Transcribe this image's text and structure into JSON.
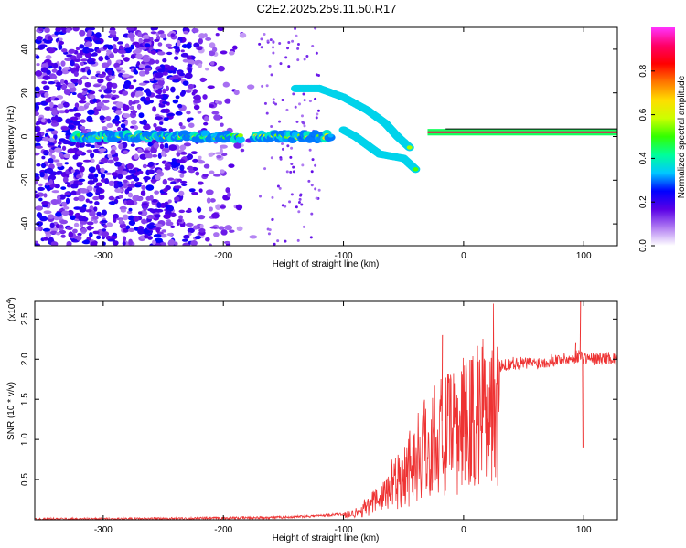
{
  "title": "C2E2.2025.259.11.50.R17",
  "chart_data": [
    {
      "type": "heatmap",
      "xlabel": "Height of straight line (km)",
      "ylabel": "Frequency (Hz)",
      "xlim": [
        -357,
        128
      ],
      "ylim": [
        -50,
        50
      ],
      "xticks": [
        -300,
        -200,
        -100,
        0,
        100
      ],
      "yticks": [
        -40,
        -20,
        0,
        20,
        40
      ],
      "xtick_labels": [
        "-300",
        "-200",
        "-100",
        "0",
        "100"
      ],
      "ytick_labels": [
        "-40",
        "-20",
        "0",
        "20",
        "40"
      ],
      "colorbar": {
        "label": "Normalized spectral amplitude",
        "range": [
          0.0,
          1.0
        ],
        "ticks": [
          0.0,
          0.2,
          0.4,
          0.6,
          0.8
        ],
        "tick_labels": [
          "0.0",
          "0.2",
          "0.4",
          "0.6",
          "0.8"
        ],
        "colors": [
          "#ffffff",
          "#b07cf2",
          "#5a00e6",
          "#0000ff",
          "#00c8ff",
          "#00ff99",
          "#33ff00",
          "#ccff00",
          "#ffdd00",
          "#ff7700",
          "#ff0000",
          "#ff0066",
          "#ff33ff"
        ]
      },
      "features": [
        {
          "name": "noise",
          "x": [
            -357,
            -170
          ],
          "y": [
            -50,
            50
          ],
          "amplitude": 0.25
        },
        {
          "name": "baseline",
          "x": [
            -325,
            -110
          ],
          "y": [
            0,
            0
          ],
          "amplitude": 0.55
        },
        {
          "name": "upper-branch",
          "points": [
            [
              -140,
              22
            ],
            [
              -120,
              22
            ],
            [
              -100,
              18
            ],
            [
              -80,
              12
            ],
            [
              -65,
              6
            ],
            [
              -55,
              0
            ],
            [
              -45,
              -5
            ]
          ],
          "amplitude": 0.5
        },
        {
          "name": "lower-branch",
          "points": [
            [
              -100,
              3
            ],
            [
              -90,
              0
            ],
            [
              -80,
              -4
            ],
            [
              -70,
              -8
            ],
            [
              -50,
              -10
            ],
            [
              -40,
              -15
            ]
          ],
          "amplitude": 0.5
        },
        {
          "name": "reflection-line",
          "x": [
            -30,
            128
          ],
          "y": [
            2,
            2
          ],
          "amplitude": 0.9
        }
      ]
    },
    {
      "type": "line",
      "xlabel": "Height of straight line (km)",
      "ylabel": "SNR (10 * v/v)",
      "y_scale_label": "(x10",
      "y_scale_exponent": "4",
      "xlim": [
        -357,
        128
      ],
      "ylim": [
        0,
        2.72
      ],
      "xticks": [
        -300,
        -200,
        -100,
        0,
        100
      ],
      "yticks": [
        0.5,
        1.0,
        1.5,
        2.0,
        2.5
      ],
      "xtick_labels": [
        "-300",
        "-200",
        "-100",
        "0",
        "100"
      ],
      "ytick_labels": [
        "0.5",
        "1.0",
        "1.5",
        "2.0",
        "2.5"
      ],
      "color": "#ee3333",
      "series": [
        {
          "x": [
            -357,
            -300,
            -200,
            -150,
            -120,
            -100,
            -90,
            -80,
            -70,
            -60,
            -50,
            -40,
            -30,
            -20,
            -15,
            -10,
            -5,
            0,
            10,
            20,
            30,
            40,
            60,
            80,
            90,
            96,
            100,
            110,
            120,
            128
          ],
          "y": [
            0.01,
            0.01,
            0.02,
            0.03,
            0.05,
            0.07,
            0.1,
            0.2,
            0.3,
            0.5,
            0.7,
            0.9,
            1.1,
            1.25,
            1.2,
            1.25,
            1.3,
            1.35,
            1.5,
            1.75,
            1.9,
            1.95,
            1.95,
            2.0,
            2.0,
            2.05,
            2.02,
            2.0,
            2.02,
            2.0
          ]
        }
      ],
      "spikes": [
        {
          "x": -18,
          "y": 2.3
        },
        {
          "x": 97,
          "y": 2.72
        },
        {
          "x": 99,
          "y": 0.9
        },
        {
          "x": 93,
          "y": 2.2
        }
      ]
    }
  ]
}
